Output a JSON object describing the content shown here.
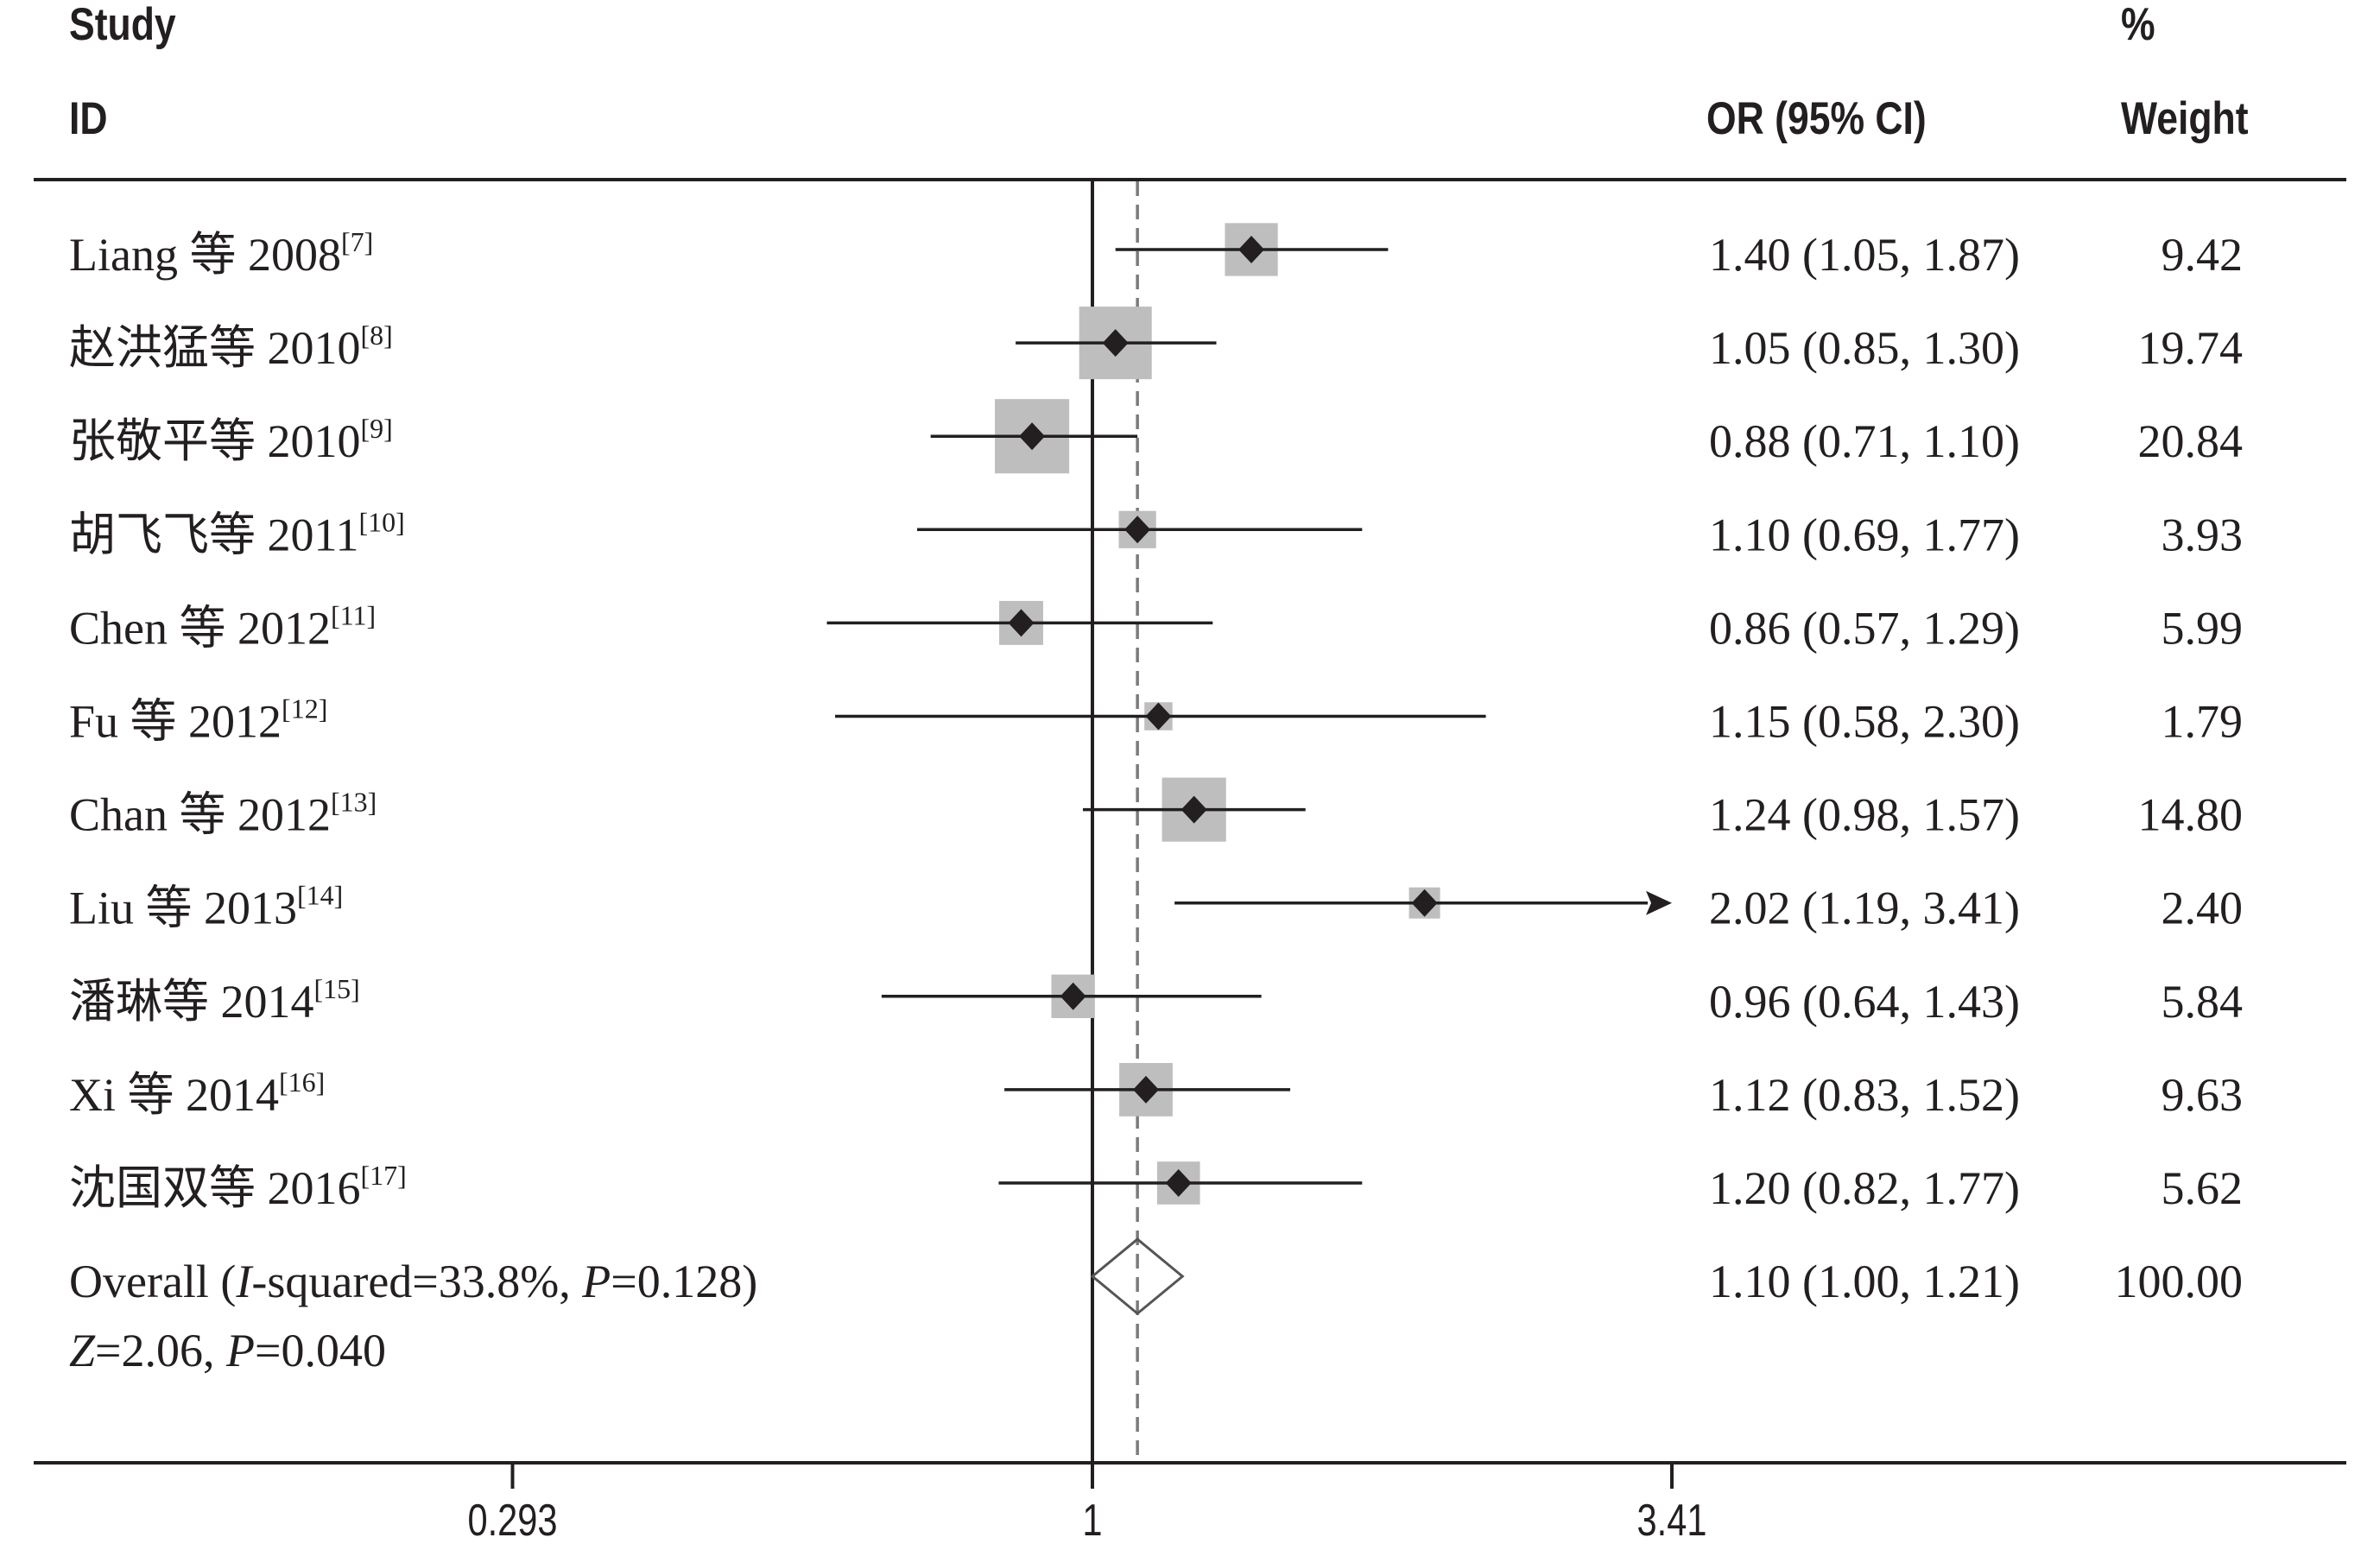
{
  "headers": {
    "study_line1": "Study",
    "study_line2": "ID",
    "or_label": "OR (95% CI)",
    "weight_line1": "%",
    "weight_line2": "Weight"
  },
  "colors": {
    "ink": "#231f20",
    "box": "#bebebe",
    "dashed_line": "#7a7a7a",
    "overall_diamond": "#555555"
  },
  "chart_data": {
    "type": "forest",
    "scale": "log",
    "xlim": [
      0.293,
      3.41
    ],
    "null_value": 1,
    "pooled_reference": 1.1,
    "x_ticks": [
      "0.293",
      "1",
      "3.41"
    ],
    "x_tick_values": [
      0.293,
      1,
      3.41
    ],
    "columns": [
      "Study ID",
      "OR (95% CI)",
      "% Weight"
    ],
    "studies": [
      {
        "name": "Liang 等 2008",
        "ref": "[7]",
        "or": 1.4,
        "lo": 1.05,
        "hi": 1.87,
        "or_text": "1.40 (1.05, 1.87)",
        "weight": 9.42,
        "weight_text": "9.42"
      },
      {
        "name": "赵洪猛等 2010",
        "ref": "[8]",
        "or": 1.05,
        "lo": 0.85,
        "hi": 1.3,
        "or_text": "1.05 (0.85, 1.30)",
        "weight": 19.74,
        "weight_text": "19.74"
      },
      {
        "name": "张敬平等 2010",
        "ref": "[9]",
        "or": 0.88,
        "lo": 0.71,
        "hi": 1.1,
        "or_text": "0.88 (0.71, 1.10)",
        "weight": 20.84,
        "weight_text": "20.84"
      },
      {
        "name": "胡飞飞等 2011",
        "ref": "[10]",
        "or": 1.1,
        "lo": 0.69,
        "hi": 1.77,
        "or_text": "1.10 (0.69, 1.77)",
        "weight": 3.93,
        "weight_text": "3.93"
      },
      {
        "name": "Chen 等 2012",
        "ref": "[11]",
        "or": 0.86,
        "lo": 0.57,
        "hi": 1.29,
        "or_text": "0.86 (0.57, 1.29)",
        "weight": 5.99,
        "weight_text": "5.99"
      },
      {
        "name": "Fu 等 2012",
        "ref": "[12]",
        "or": 1.15,
        "lo": 0.58,
        "hi": 2.3,
        "or_text": "1.15 (0.58, 2.30)",
        "weight": 1.79,
        "weight_text": "1.79"
      },
      {
        "name": "Chan 等 2012",
        "ref": "[13]",
        "or": 1.24,
        "lo": 0.98,
        "hi": 1.57,
        "or_text": "1.24 (0.98, 1.57)",
        "weight": 14.8,
        "weight_text": "14.80"
      },
      {
        "name": "Liu 等 2013",
        "ref": "[14]",
        "or": 2.02,
        "lo": 1.19,
        "hi": 3.41,
        "or_text": "2.02 (1.19, 3.41)",
        "weight": 2.4,
        "weight_text": "2.40"
      },
      {
        "name": "潘琳等 2014",
        "ref": "[15]",
        "or": 0.96,
        "lo": 0.64,
        "hi": 1.43,
        "or_text": "0.96 (0.64, 1.43)",
        "weight": 5.84,
        "weight_text": "5.84"
      },
      {
        "name": "Xi 等 2014",
        "ref": "[16]",
        "or": 1.12,
        "lo": 0.83,
        "hi": 1.52,
        "or_text": "1.12 (0.83, 1.52)",
        "weight": 9.63,
        "weight_text": "9.63"
      },
      {
        "name": "沈国双等 2016",
        "ref": "[17]",
        "or": 1.2,
        "lo": 0.82,
        "hi": 1.77,
        "or_text": "1.20 (0.82, 1.77)",
        "weight": 5.62,
        "weight_text": "5.62"
      }
    ],
    "overall": {
      "label_parts": [
        "Overall (",
        "I",
        "-squared=33.8%, ",
        "P",
        "=0.128)"
      ],
      "test_parts": [
        "Z",
        "=2.06, ",
        "P",
        "=0.040"
      ],
      "or": 1.1,
      "lo": 1.0,
      "hi": 1.21,
      "or_text": "1.10 (1.00, 1.21)",
      "weight_text": "100.00",
      "i_squared": 33.8,
      "p_heterogeneity": 0.128,
      "z": 2.06,
      "p": 0.04
    }
  }
}
